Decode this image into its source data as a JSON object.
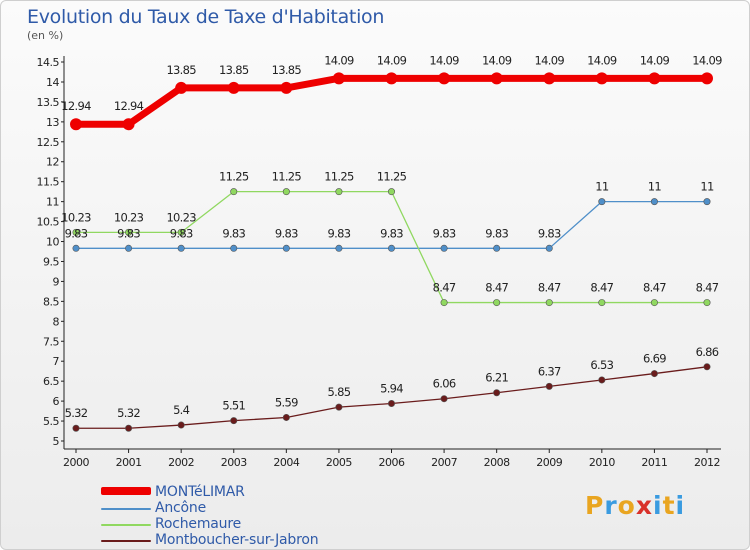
{
  "title": "Evolution du Taux de Taxe d'Habitation",
  "subtitle": "(en %)",
  "colors": {
    "montelimar": "#ee0000",
    "ancone": "#4f8fc9",
    "rochemaure": "#90d860",
    "montboucher": "#6a1c1c"
  },
  "chart_data": {
    "type": "line",
    "x": [
      "2000",
      "2001",
      "2002",
      "2003",
      "2004",
      "2005",
      "2006",
      "2007",
      "2008",
      "2009",
      "2010",
      "2011",
      "2012"
    ],
    "ylim": [
      5,
      14.5
    ],
    "yticks": [
      "5",
      "5.5",
      "6",
      "6.5",
      "7",
      "7.5",
      "8",
      "8.5",
      "9",
      "9.5",
      "10",
      "10.5",
      "11",
      "11.5",
      "12",
      "12.5",
      "13",
      "13.5",
      "14",
      "14.5"
    ],
    "grid": false,
    "legend_position": "bottom-left",
    "series": [
      {
        "name": "MONTéLIMAR",
        "key": "montelimar",
        "values": [
          12.94,
          12.94,
          13.85,
          13.85,
          13.85,
          14.09,
          14.09,
          14.09,
          14.09,
          14.09,
          14.09,
          14.09,
          14.09
        ],
        "labels": [
          "12.94",
          "12.94",
          "13.85",
          "13.85",
          "13.85",
          "14.09",
          "14.09",
          "14.09",
          "14.09",
          "14.09",
          "14.09",
          "14.09",
          "14.09"
        ]
      },
      {
        "name": "Ancône",
        "key": "ancone",
        "values": [
          9.83,
          9.83,
          9.83,
          9.83,
          9.83,
          9.83,
          9.83,
          9.83,
          9.83,
          9.83,
          11,
          11,
          11
        ],
        "labels": [
          "9.83",
          "9.83",
          "9.83",
          "9.83",
          "9.83",
          "9.83",
          "9.83",
          "9.83",
          "9.83",
          "9.83",
          "11",
          "11",
          "11"
        ]
      },
      {
        "name": "Rochemaure",
        "key": "rochemaure",
        "values": [
          10.23,
          10.23,
          10.23,
          11.25,
          11.25,
          11.25,
          11.25,
          8.47,
          8.47,
          8.47,
          8.47,
          8.47,
          8.47
        ],
        "labels": [
          "10.23",
          "10.23",
          "10.23",
          "11.25",
          "11.25",
          "11.25",
          "11.25",
          "8.47",
          "8.47",
          "8.47",
          "8.47",
          "8.47",
          "8.47"
        ]
      },
      {
        "name": "Montboucher-sur-Jabron",
        "key": "montboucher",
        "values": [
          5.32,
          5.32,
          5.4,
          5.51,
          5.59,
          5.85,
          5.94,
          6.06,
          6.21,
          6.37,
          6.53,
          6.69,
          6.86
        ],
        "labels": [
          "5.32",
          "5.32",
          "5.4",
          "5.51",
          "5.59",
          "5.85",
          "5.94",
          "6.06",
          "6.21",
          "6.37",
          "6.53",
          "6.69",
          "6.86"
        ]
      }
    ]
  },
  "logo": {
    "letters": [
      "P",
      "r",
      "o",
      "x",
      "i",
      "t",
      "i"
    ],
    "colors": [
      "#e9a520",
      "#3a9be0",
      "#e9a520",
      "#d9312a",
      "#3a9be0",
      "#e9a520",
      "#3a9be0"
    ]
  }
}
